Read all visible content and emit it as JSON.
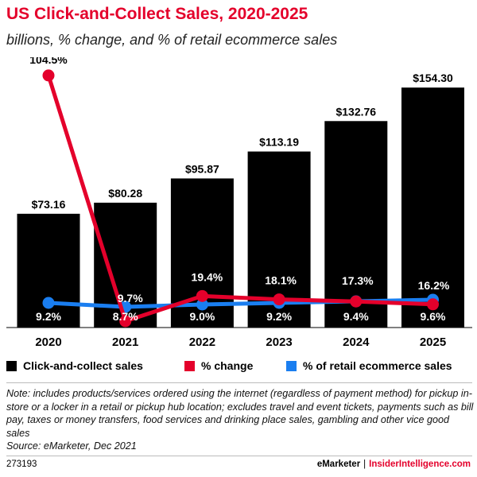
{
  "header": {
    "title": "US Click-and-Collect Sales, 2020-2025",
    "subtitle": "billions, % change, and % of retail ecommerce sales"
  },
  "chart_data": {
    "type": "bar",
    "title": "US Click-and-Collect Sales, 2020-2025",
    "subtitle": "billions, % change, and % of retail ecommerce sales",
    "categories": [
      "2020",
      "2021",
      "2022",
      "2023",
      "2024",
      "2025"
    ],
    "series": [
      {
        "name": "Click-and-collect sales",
        "type": "bar",
        "color": "#000000",
        "values": [
          73.16,
          80.28,
          95.87,
          113.19,
          132.76,
          154.3
        ],
        "labels": [
          "$73.16",
          "$80.28",
          "$95.87",
          "$113.19",
          "$132.76",
          "$154.30"
        ]
      },
      {
        "name": "% change",
        "type": "line",
        "color": "#e4002b",
        "values": [
          104.5,
          9.7,
          19.4,
          18.1,
          17.3,
          16.2
        ],
        "labels": [
          "104.5%",
          "9.7%",
          "19.4%",
          "18.1%",
          "17.3%",
          "16.2%"
        ]
      },
      {
        "name": "% of retail ecommerce sales",
        "type": "line",
        "color": "#1a7ef0",
        "values": [
          9.2,
          8.7,
          9.0,
          9.2,
          9.4,
          9.6
        ],
        "labels": [
          "9.2%",
          "8.7%",
          "9.0%",
          "9.2%",
          "9.4%",
          "9.6%"
        ]
      }
    ],
    "ylim_bars": [
      0,
      160
    ],
    "ylim_pct_change": [
      0,
      110
    ],
    "legend_position": "bottom",
    "grid": false
  },
  "legend": {
    "items": [
      {
        "label": "Click-and-collect sales",
        "color": "#000000"
      },
      {
        "label": "% change",
        "color": "#e4002b"
      },
      {
        "label": "% of retail ecommerce sales",
        "color": "#1a7ef0"
      }
    ]
  },
  "note": {
    "text": "Note: includes products/services ordered using the internet (regardless of payment method) for pickup in-store or a locker in a retail or pickup hub location; excludes travel and event tickets, payments such as bill pay, taxes or money transfers, food services and drinking place sales, gambling and other vice good sales",
    "source": "Source: eMarketer, Dec 2021"
  },
  "footer": {
    "chart_id": "273193",
    "brand": "eMarketer",
    "separator": "|",
    "site": "InsiderIntelligence.com"
  }
}
